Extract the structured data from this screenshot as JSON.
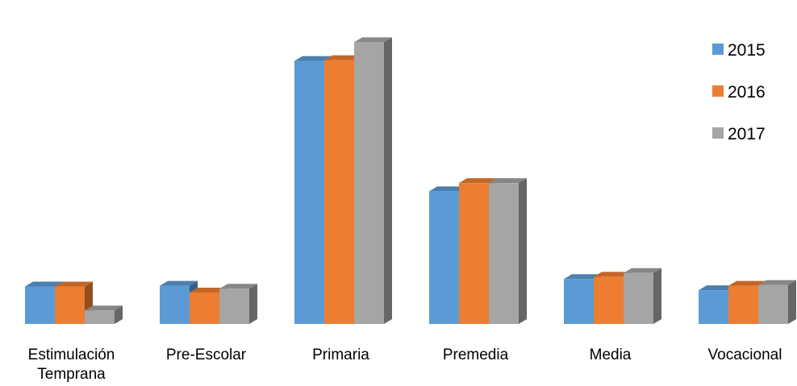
{
  "chart_data": {
    "type": "bar",
    "style": "3d-clustered-column",
    "categories": [
      [
        "Estimulación",
        "Temprana"
      ],
      [
        "Pre-Escolar"
      ],
      [
        "Primaria"
      ],
      [
        "Premedia"
      ],
      [
        "Media"
      ],
      [
        "Vocacional"
      ]
    ],
    "series": [
      {
        "name": "2015",
        "color": "#5B9BD5",
        "values": [
          50,
          51,
          351,
          177,
          60,
          45
        ]
      },
      {
        "name": "2016",
        "color": "#ED7D31",
        "values": [
          50,
          42,
          352,
          188,
          63,
          51
        ]
      },
      {
        "name": "2017",
        "color": "#A5A5A5",
        "values": [
          18,
          47,
          376,
          188,
          68,
          52
        ]
      }
    ],
    "ylim": [
      0,
      400
    ],
    "title": "",
    "xlabel": "",
    "ylabel": "",
    "grid": false,
    "axis_ticks_shown": false,
    "legend_position": "right"
  }
}
